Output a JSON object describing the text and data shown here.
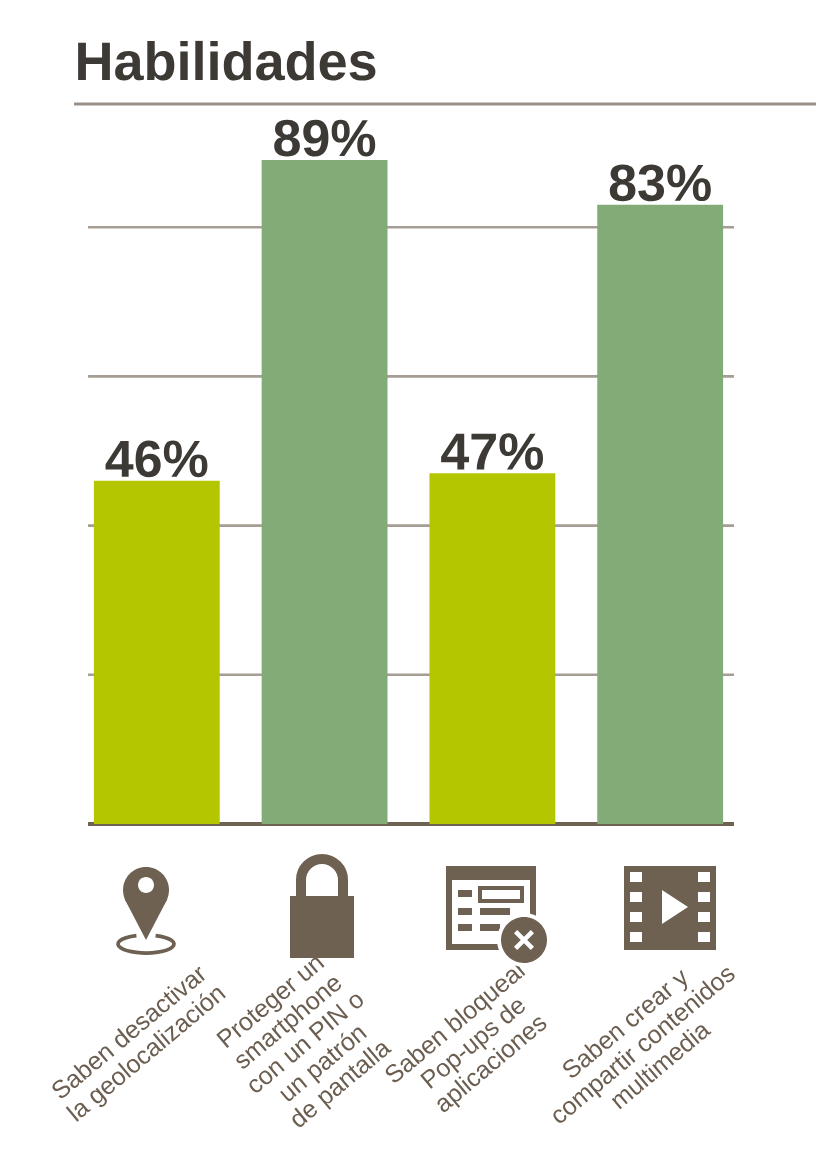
{
  "chart_data": {
    "type": "bar",
    "title": "Habilidades",
    "categories": [
      "Saben desactivar\nla geolocalización",
      "Proteger un\nsmartphone\ncon un PIN o\nun patrón\nde pantalla",
      "Saben bloquear\nPop-ups de\naplicaciones",
      "Saben crear y\ncompartir contenidos\nmultimedia"
    ],
    "values": [
      46,
      89,
      47,
      83
    ],
    "colors": [
      "#b3c600",
      "#82ab78",
      "#b3c600",
      "#82ab78"
    ],
    "value_labels": [
      "46%",
      "89%",
      "47%",
      "83%"
    ],
    "yticks": [
      {
        "value": 20,
        "label": null
      },
      {
        "value": 40,
        "label": null
      },
      {
        "value": 60,
        "label": null
      },
      {
        "value": 80,
        "label": null
      }
    ],
    "grid": "y",
    "tick_labels": "x"
  }
}
